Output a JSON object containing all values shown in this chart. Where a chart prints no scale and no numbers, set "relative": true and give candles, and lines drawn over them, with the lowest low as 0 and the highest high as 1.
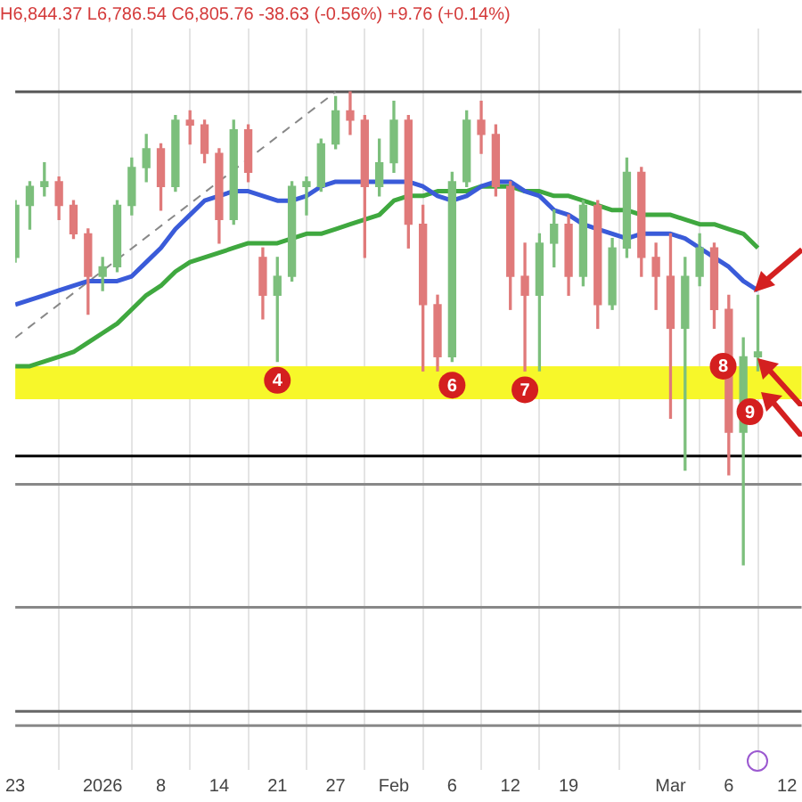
{
  "chart_data": {
    "type": "candlestick",
    "title": "H6,844.37 L6,786.54 C6,805.76 -38.63 (-0.56%) +9.76 (+0.14%)",
    "relative": true,
    "categories": [
      "23",
      null,
      null,
      null,
      null,
      null,
      "2026",
      null,
      null,
      null,
      "8",
      null,
      null,
      null,
      "14",
      null,
      null,
      null,
      "21",
      null,
      null,
      null,
      "27",
      null,
      null,
      null,
      "Feb",
      null,
      null,
      null,
      "6",
      null,
      null,
      null,
      "12",
      null,
      null,
      null,
      "19",
      null,
      null,
      null,
      null,
      null,
      null,
      "Mar",
      null,
      null,
      null,
      "6",
      null,
      null,
      null,
      "12",
      null
    ],
    "ohlc": [
      [
        0.65,
        0.77,
        0.64,
        0.76
      ],
      [
        0.76,
        0.81,
        0.71,
        0.8
      ],
      [
        0.8,
        0.85,
        0.78,
        0.81
      ],
      [
        0.81,
        0.82,
        0.73,
        0.76
      ],
      [
        0.76,
        0.77,
        0.69,
        0.7
      ],
      [
        0.7,
        0.71,
        0.53,
        0.61
      ],
      [
        0.61,
        0.65,
        0.58,
        0.63
      ],
      [
        0.63,
        0.77,
        0.62,
        0.76
      ],
      [
        0.76,
        0.86,
        0.74,
        0.84
      ],
      [
        0.84,
        0.91,
        0.81,
        0.88
      ],
      [
        0.88,
        0.89,
        0.75,
        0.8
      ],
      [
        0.8,
        0.95,
        0.79,
        0.94
      ],
      [
        0.94,
        0.96,
        0.89,
        0.93
      ],
      [
        0.93,
        0.94,
        0.85,
        0.87
      ],
      [
        0.87,
        0.88,
        0.68,
        0.73
      ],
      [
        0.73,
        0.94,
        0.72,
        0.92
      ],
      [
        0.92,
        0.93,
        0.81,
        0.83
      ],
      [
        0.65,
        0.67,
        0.52,
        0.57
      ],
      [
        0.57,
        0.65,
        0.43,
        0.61
      ],
      [
        0.61,
        0.81,
        0.6,
        0.8
      ],
      [
        0.8,
        0.82,
        0.74,
        0.81
      ],
      [
        0.8,
        0.9,
        0.79,
        0.89
      ],
      [
        0.89,
        0.99,
        0.88,
        0.96
      ],
      [
        0.96,
        1.0,
        0.91,
        0.94
      ],
      [
        0.94,
        0.95,
        0.65,
        0.8
      ],
      [
        0.8,
        0.9,
        0.78,
        0.85
      ],
      [
        0.85,
        0.98,
        0.83,
        0.94
      ],
      [
        0.94,
        0.95,
        0.67,
        0.72
      ],
      [
        0.72,
        0.76,
        0.41,
        0.55
      ],
      [
        0.55,
        0.57,
        0.41,
        0.44
      ],
      [
        0.44,
        0.83,
        0.43,
        0.81
      ],
      [
        0.81,
        0.96,
        0.8,
        0.94
      ],
      [
        0.94,
        0.98,
        0.87,
        0.91
      ],
      [
        0.91,
        0.93,
        0.78,
        0.8
      ],
      [
        0.8,
        0.81,
        0.54,
        0.61
      ],
      [
        0.61,
        0.68,
        0.41,
        0.57
      ],
      [
        0.57,
        0.7,
        0.41,
        0.68
      ],
      [
        0.68,
        0.75,
        0.63,
        0.72
      ],
      [
        0.72,
        0.74,
        0.57,
        0.61
      ],
      [
        0.61,
        0.77,
        0.59,
        0.76
      ],
      [
        0.76,
        0.77,
        0.5,
        0.55
      ],
      [
        0.55,
        0.69,
        0.54,
        0.67
      ],
      [
        0.67,
        0.86,
        0.65,
        0.83
      ],
      [
        0.83,
        0.84,
        0.61,
        0.65
      ],
      [
        0.65,
        0.68,
        0.54,
        0.61
      ],
      [
        0.61,
        0.7,
        0.31,
        0.5
      ],
      [
        0.5,
        0.65,
        0.2,
        0.61
      ],
      [
        0.61,
        0.7,
        0.59,
        0.67
      ],
      [
        0.67,
        0.68,
        0.5,
        0.54
      ],
      [
        0.54,
        0.57,
        0.19,
        0.28
      ],
      [
        0.28,
        0.48,
        0.0,
        0.44
      ],
      [
        0.44,
        0.57,
        0.41,
        0.45
      ],
      null,
      null,
      null
    ],
    "colors": [
      "#7cbf7c",
      "#7cbf7c",
      "#7cbf7c",
      "#e07a7a",
      "#e07a7a",
      "#e07a7a",
      "#7cbf7c",
      "#7cbf7c",
      "#7cbf7c",
      "#7cbf7c",
      "#e07a7a",
      "#7cbf7c",
      "#e07a7a",
      "#e07a7a",
      "#e07a7a",
      "#7cbf7c",
      "#e07a7a",
      "#e07a7a",
      "#7cbf7c",
      "#7cbf7c",
      "#7cbf7c",
      "#7cbf7c",
      "#7cbf7c",
      "#e07a7a",
      "#e07a7a",
      "#7cbf7c",
      "#7cbf7c",
      "#e07a7a",
      "#e07a7a",
      "#e07a7a",
      "#7cbf7c",
      "#7cbf7c",
      "#e07a7a",
      "#e07a7a",
      "#e07a7a",
      "#e07a7a",
      "#7cbf7c",
      "#7cbf7c",
      "#e07a7a",
      "#7cbf7c",
      "#e07a7a",
      "#7cbf7c",
      "#7cbf7c",
      "#e07a7a",
      "#e07a7a",
      "#e07a7a",
      "#7cbf7c",
      "#7cbf7c",
      "#e07a7a",
      "#e07a7a",
      "#7cbf7c",
      "#7cbf7c",
      null,
      null,
      null
    ],
    "series": [
      {
        "type": "line",
        "color": "#3a5bd9",
        "values": [
          0.55,
          0.56,
          0.57,
          0.58,
          0.59,
          0.6,
          0.6,
          0.6,
          0.61,
          0.64,
          0.67,
          0.71,
          0.74,
          0.77,
          0.78,
          0.79,
          0.79,
          0.78,
          0.77,
          0.77,
          0.78,
          0.8,
          0.81,
          0.81,
          0.81,
          0.81,
          0.81,
          0.81,
          0.8,
          0.78,
          0.77,
          0.78,
          0.8,
          0.81,
          0.81,
          0.79,
          0.78,
          0.75,
          0.74,
          0.72,
          0.71,
          0.7,
          0.69,
          0.7,
          0.7,
          0.7,
          0.69,
          0.67,
          0.65,
          0.63,
          0.6,
          0.58,
          null,
          null,
          null
        ]
      },
      {
        "type": "line",
        "color": "#3fa83f",
        "values": [
          0.42,
          0.42,
          0.43,
          0.44,
          0.45,
          0.47,
          0.49,
          0.51,
          0.54,
          0.57,
          0.59,
          0.62,
          0.64,
          0.65,
          0.66,
          0.67,
          0.68,
          0.68,
          0.68,
          0.69,
          0.7,
          0.7,
          0.71,
          0.72,
          0.73,
          0.74,
          0.77,
          0.78,
          0.78,
          0.79,
          0.79,
          0.79,
          0.8,
          0.8,
          0.8,
          0.79,
          0.79,
          0.78,
          0.78,
          0.77,
          0.76,
          0.75,
          0.75,
          0.74,
          0.74,
          0.74,
          0.73,
          0.72,
          0.72,
          0.71,
          0.7,
          0.67,
          null,
          null,
          null
        ]
      },
      {
        "type": "line",
        "color": "#888888",
        "line_style": "dashed",
        "x": [
          "23",
          "27"
        ],
        "values": [
          0.48,
          1.0
        ]
      }
    ],
    "ref_lines": [
      {
        "axis": "y",
        "value": 1.0,
        "color": "#555555"
      },
      {
        "axis": "y",
        "value": 0.23,
        "color": "#000000"
      },
      {
        "axis": "y",
        "value": 0.17,
        "color": "#888888"
      },
      {
        "axis": "y",
        "value": -0.09,
        "color": "#888888"
      },
      {
        "axis": "y",
        "value": -0.31,
        "color": "#666666"
      },
      {
        "axis": "y",
        "value": -0.34,
        "color": "#888888"
      }
    ],
    "bands": [
      {
        "axis": "y",
        "from": 0.35,
        "to": 0.42,
        "color": "#f7f72a"
      }
    ],
    "annotations": [
      {
        "text": "4",
        "x": "21",
        "y": 0.39
      },
      {
        "text": "6",
        "x": "6",
        "y": 0.38
      },
      {
        "text": "7",
        "y": 0.37
      },
      "8",
      "9"
    ],
    "grid": "x",
    "tick_labels": "x"
  }
}
